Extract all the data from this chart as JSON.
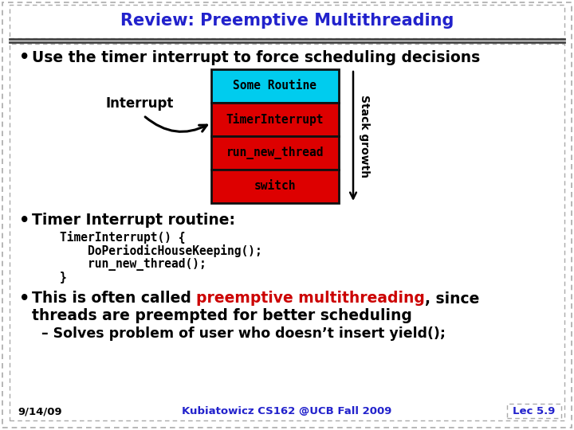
{
  "title": "Review: Preemptive Multithreading",
  "title_color": "#2222cc",
  "bg_color": "#ffffff",
  "bullet1": "Use the timer interrupt to force scheduling decisions",
  "stack_blocks": [
    "Some Routine",
    "TimerInterrupt",
    "run_new_thread",
    "switch"
  ],
  "stack_colors": [
    "#00ccee",
    "#dd0000",
    "#dd0000",
    "#dd0000"
  ],
  "interrupt_label": "Interrupt",
  "stack_growth_label": "Stack growth",
  "bullet2": "Timer Interrupt routine:",
  "code_lines": [
    "TimerInterrupt() {",
    "    DoPeriodicHouseKeeping();",
    "    run_new_thread();",
    "}"
  ],
  "bullet3_pre": "This is often called ",
  "bullet3_highlight": "preemptive multithreading",
  "bullet3_post": ", since",
  "bullet3_line2": "threads are preempted for better scheduling",
  "bullet3_sub": "– Solves problem of user who doesn’t insert yield();",
  "footer_left": "9/14/09",
  "footer_center": "Kubiatowicz CS162 @UCB Fall 2009",
  "footer_right": "Lec 5.9",
  "footer_color": "#2222cc",
  "highlight_color": "#cc0000",
  "border_color": "#aaaaaa",
  "line_color": "#444444"
}
